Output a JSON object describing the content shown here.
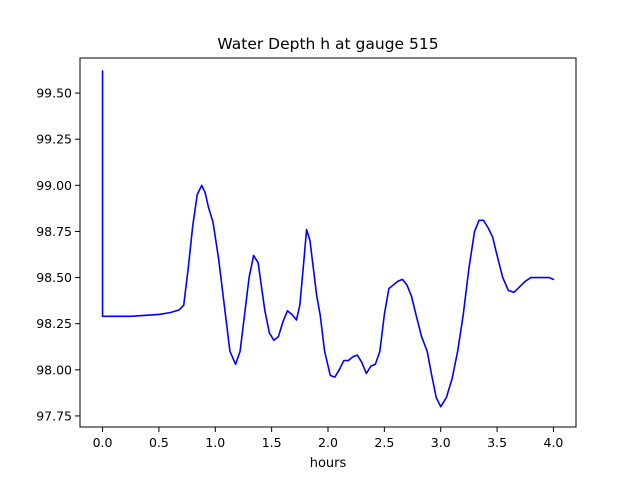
{
  "chart_data": {
    "type": "line",
    "title": "Water Depth h at gauge 515",
    "xlabel": "hours",
    "ylabel": "",
    "xlim": [
      -0.2,
      4.2
    ],
    "ylim": [
      97.69,
      99.69
    ],
    "xticks": [
      0.0,
      0.5,
      1.0,
      1.5,
      2.0,
      2.5,
      3.0,
      3.5,
      4.0
    ],
    "xtick_labels": [
      "0.0",
      "0.5",
      "1.0",
      "1.5",
      "2.0",
      "2.5",
      "3.0",
      "3.5",
      "4.0"
    ],
    "yticks": [
      97.75,
      98.0,
      98.25,
      98.5,
      98.75,
      99.0,
      99.25,
      99.5
    ],
    "ytick_labels": [
      "97.75",
      "98.00",
      "98.25",
      "98.50",
      "98.75",
      "99.00",
      "99.25",
      "99.50"
    ],
    "grid": false,
    "series": [
      {
        "color": "#0000ff",
        "x": [
          0.0,
          0.0,
          0.0,
          0.25,
          0.5,
          0.6,
          0.68,
          0.72,
          0.76,
          0.8,
          0.84,
          0.88,
          0.91,
          0.94,
          0.98,
          1.03,
          1.08,
          1.13,
          1.18,
          1.22,
          1.26,
          1.3,
          1.34,
          1.38,
          1.41,
          1.44,
          1.48,
          1.52,
          1.56,
          1.6,
          1.64,
          1.68,
          1.72,
          1.75,
          1.78,
          1.81,
          1.84,
          1.87,
          1.9,
          1.93,
          1.97,
          2.02,
          2.06,
          2.1,
          2.14,
          2.18,
          2.22,
          2.26,
          2.3,
          2.34,
          2.38,
          2.42,
          2.46,
          2.5,
          2.54,
          2.58,
          2.62,
          2.66,
          2.7,
          2.74,
          2.78,
          2.83,
          2.88,
          2.92,
          2.96,
          3.0,
          3.05,
          3.1,
          3.15,
          3.2,
          3.25,
          3.3,
          3.34,
          3.38,
          3.42,
          3.46,
          3.5,
          3.55,
          3.6,
          3.65,
          3.7,
          3.75,
          3.8,
          3.84,
          3.88,
          3.92,
          3.96,
          4.0
        ],
        "y": [
          99.62,
          98.5,
          98.29,
          98.29,
          98.3,
          98.31,
          98.325,
          98.35,
          98.55,
          98.78,
          98.95,
          99.0,
          98.96,
          98.88,
          98.8,
          98.6,
          98.35,
          98.1,
          98.03,
          98.1,
          98.3,
          98.5,
          98.62,
          98.58,
          98.45,
          98.32,
          98.2,
          98.16,
          98.18,
          98.26,
          98.32,
          98.3,
          98.27,
          98.35,
          98.55,
          98.76,
          98.7,
          98.55,
          98.4,
          98.3,
          98.1,
          97.97,
          97.96,
          98.0,
          98.05,
          98.05,
          98.07,
          98.08,
          98.04,
          97.98,
          98.02,
          98.03,
          98.1,
          98.3,
          98.44,
          98.46,
          98.48,
          98.49,
          98.46,
          98.4,
          98.3,
          98.18,
          98.1,
          97.97,
          97.85,
          97.8,
          97.85,
          97.95,
          98.1,
          98.3,
          98.55,
          98.75,
          98.81,
          98.81,
          98.77,
          98.72,
          98.62,
          98.5,
          98.43,
          98.42,
          98.45,
          98.48,
          98.5,
          98.5,
          98.5,
          98.5,
          98.5,
          98.49
        ]
      }
    ]
  }
}
